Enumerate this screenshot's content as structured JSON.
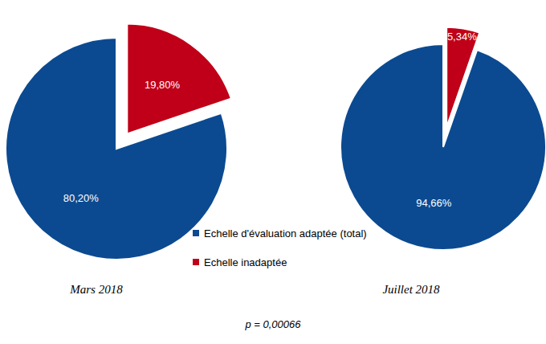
{
  "chart_data": [
    {
      "type": "pie",
      "title": "Mars 2018",
      "categories": [
        "Echelle d'évaluation adaptée (total)",
        "Echelle inadaptée"
      ],
      "values": [
        80.2,
        19.8
      ],
      "value_labels": [
        "80,20%",
        "19,80%"
      ],
      "colors": [
        "#0b4a91",
        "#c00018"
      ],
      "data_labels": true,
      "legend": "bottom"
    },
    {
      "type": "pie",
      "title": "Juillet 2018",
      "categories": [
        "Echelle d'évaluation adaptée (total)",
        "Echelle inadaptée"
      ],
      "values": [
        94.66,
        5.34
      ],
      "value_labels": [
        "94,66%",
        "5,34%"
      ],
      "colors": [
        "#0b4a91",
        "#c00018"
      ],
      "data_labels": true
    }
  ],
  "annotation": "p = 0,00066"
}
